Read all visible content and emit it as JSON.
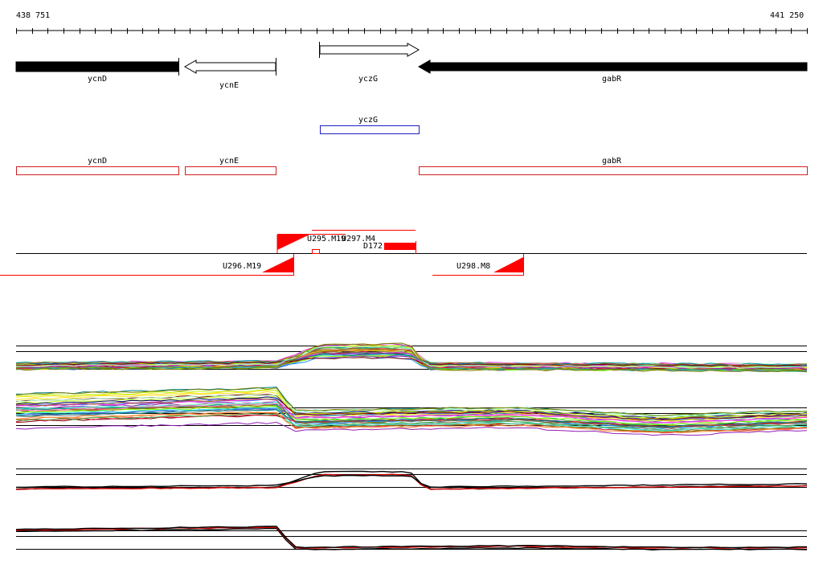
{
  "coordinates": {
    "start": "438 751",
    "end": "441 250"
  },
  "genes": [
    {
      "name": "ycnD",
      "strand": "forward",
      "fill": "#000000"
    },
    {
      "name": "ycnE",
      "strand": "reverse",
      "fill": "#ffffff"
    },
    {
      "name": "yczG",
      "strand": "forward",
      "fill": "#ffffff"
    },
    {
      "name": "gabR",
      "strand": "reverse",
      "fill": "#000000"
    }
  ],
  "annotation_boxes": [
    {
      "name": "yczG",
      "color": "#2020c0"
    },
    {
      "name": "ycnD",
      "color": "#d02020"
    },
    {
      "name": "ycnE",
      "color": "#d02020"
    },
    {
      "name": "gabR",
      "color": "#d02020"
    }
  ],
  "transcripts": [
    {
      "name": "U295.M19"
    },
    {
      "name": "U297.M4"
    },
    {
      "name": "D172"
    },
    {
      "name": "U296.M19"
    },
    {
      "name": "U298.M8"
    }
  ],
  "expression_panels": [
    {
      "type": "multicolor",
      "pattern": "step-up"
    },
    {
      "type": "multicolor",
      "pattern": "step-down"
    },
    {
      "type": "pair",
      "pattern": "step-up",
      "colors": [
        "#000000",
        "#d00000"
      ]
    },
    {
      "type": "pair",
      "pattern": "step-down",
      "colors": [
        "#000000",
        "#d00000"
      ]
    }
  ],
  "colors": {
    "gene_black": "#000000",
    "annotation_red": "#d02020",
    "annotation_blue": "#2020c0",
    "transcript_red": "#ff0000"
  }
}
